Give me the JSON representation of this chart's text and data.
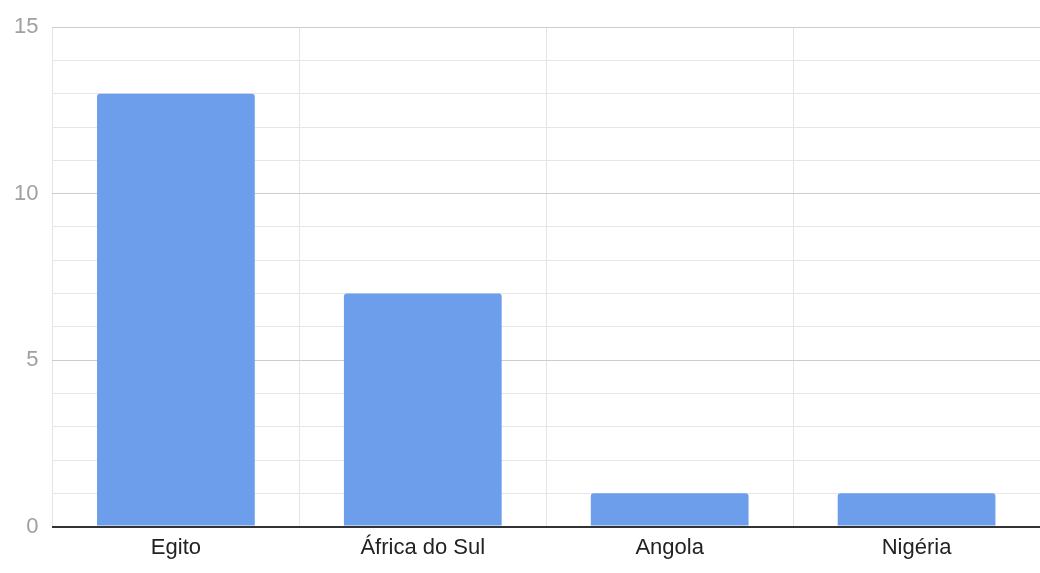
{
  "chart_data": {
    "type": "bar",
    "categories": [
      "Egito",
      "África do Sul",
      "Angola",
      "Nigéria"
    ],
    "values": [
      13,
      7,
      1,
      1
    ],
    "color": "#6d9eeb",
    "ylim": [
      0,
      15
    ],
    "yticks": [
      0,
      {
        "value": 1,
        "label": null
      },
      {
        "value": 2,
        "label": null
      },
      {
        "value": 3,
        "label": null
      },
      {
        "value": 4,
        "label": null
      },
      5,
      {
        "value": 6,
        "label": null
      },
      {
        "value": 7,
        "label": null
      },
      {
        "value": 8,
        "label": null
      },
      {
        "value": 9,
        "label": null
      },
      10,
      {
        "value": 11,
        "label": null
      },
      {
        "value": 12,
        "label": null
      },
      {
        "value": 13,
        "label": null
      },
      {
        "value": 14,
        "label": null
      },
      15
    ],
    "grid": true,
    "legend": false
  }
}
